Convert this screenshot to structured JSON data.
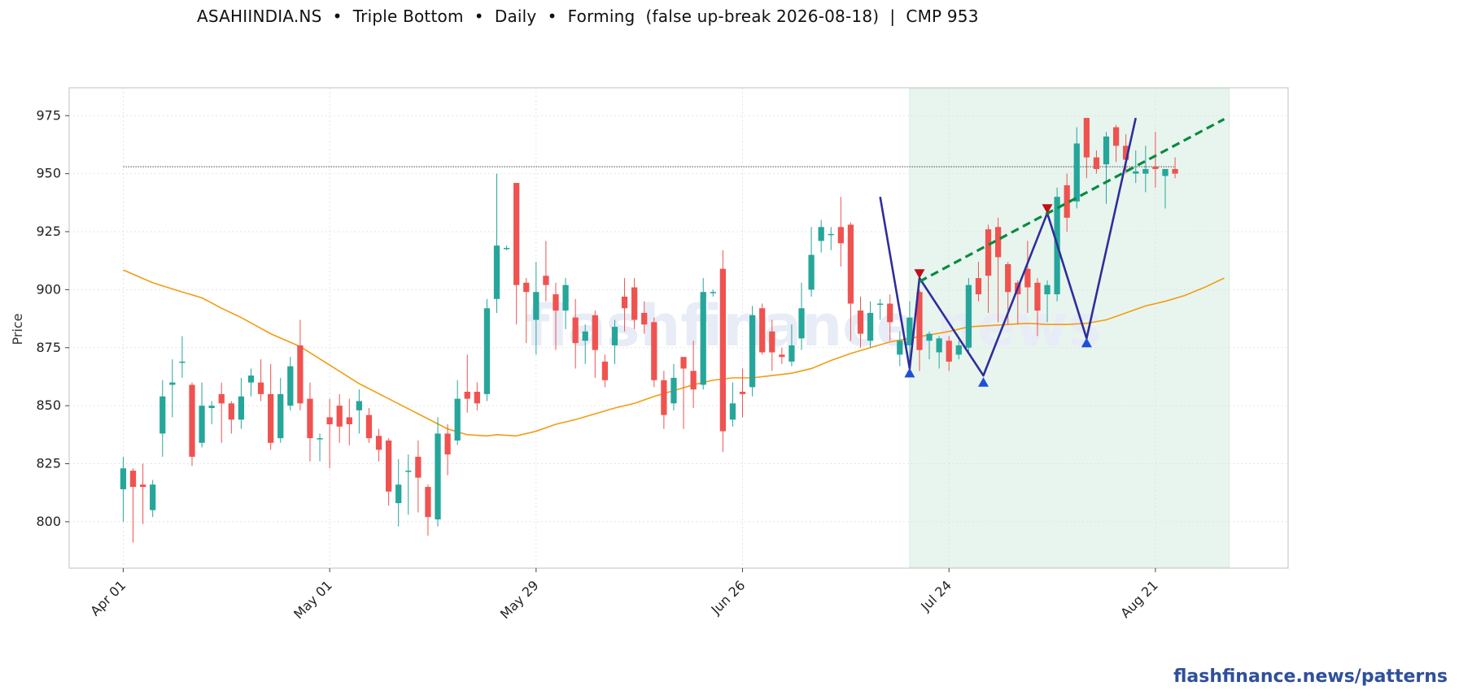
{
  "title": "ASAHIINDIA.NS  •  Triple Bottom  •  Daily  •  Forming  (false up-break 2026-08-18)  |  CMP 953",
  "footer": "flashfinance.news/patterns",
  "watermark": "flashfinance.news",
  "colors": {
    "up": "#26a69a",
    "down": "#ef5350",
    "ma": "#f39c12",
    "pattern": "#2e2e9a",
    "trendline": "#0a8a3f",
    "zone": "#e8f5ee",
    "marker_high": "#c0101a",
    "marker_low": "#1f4fd8"
  },
  "chart_data": {
    "type": "candlestick",
    "ylabel": "Price",
    "ylim": [
      780,
      987
    ],
    "yticks": [
      800,
      825,
      850,
      875,
      900,
      925,
      950,
      975
    ],
    "xlim": [
      -5.5,
      118.5
    ],
    "xticks": [
      {
        "index": 0,
        "label": "Apr 01"
      },
      {
        "index": 21,
        "label": "May 01"
      },
      {
        "index": 42,
        "label": "May 29"
      },
      {
        "index": 63,
        "label": "Jun 26"
      },
      {
        "index": 84,
        "label": "Jul 24"
      },
      {
        "index": 105,
        "label": "Aug 21"
      }
    ],
    "cmp": 953,
    "pattern_zone": [
      80,
      112.5
    ],
    "candles": [
      [
        814,
        823,
        828,
        800
      ],
      [
        822,
        815,
        823,
        791
      ],
      [
        816,
        815,
        825,
        799
      ],
      [
        805,
        816,
        818,
        802
      ],
      [
        838,
        854,
        861,
        828
      ],
      [
        859,
        860,
        870,
        845
      ],
      [
        869,
        869,
        880,
        862
      ],
      [
        859,
        828,
        860,
        824
      ],
      [
        834,
        850,
        860,
        832
      ],
      [
        849,
        850,
        852,
        842
      ],
      [
        855,
        851,
        860,
        834
      ],
      [
        851,
        844,
        852,
        838
      ],
      [
        844,
        854,
        862,
        840
      ],
      [
        860,
        863,
        866,
        854
      ],
      [
        860,
        855,
        870,
        852
      ],
      [
        855,
        834,
        868,
        831
      ],
      [
        836,
        855,
        862,
        834
      ],
      [
        850,
        867,
        871,
        848
      ],
      [
        876,
        851,
        887,
        848
      ],
      [
        853,
        836,
        860,
        826
      ],
      [
        836,
        836,
        838,
        826
      ],
      [
        845,
        842,
        853,
        823
      ],
      [
        850,
        841,
        855,
        834
      ],
      [
        845,
        842,
        853,
        833
      ],
      [
        848,
        852,
        857,
        838
      ],
      [
        846,
        836,
        849,
        834
      ],
      [
        837,
        831,
        840,
        826
      ],
      [
        835,
        813,
        836,
        807
      ],
      [
        808,
        816,
        827,
        798
      ],
      [
        822,
        822,
        829,
        803
      ],
      [
        828,
        819,
        835,
        804
      ],
      [
        815,
        802,
        816,
        794
      ],
      [
        801,
        838,
        845,
        798
      ],
      [
        838,
        829,
        842,
        820
      ],
      [
        835,
        853,
        861,
        833
      ],
      [
        856,
        853,
        872,
        847
      ],
      [
        856,
        851,
        860,
        848
      ],
      [
        855,
        892,
        896,
        852
      ],
      [
        896,
        919,
        950,
        890
      ],
      [
        918,
        918,
        919,
        917
      ],
      [
        946,
        902,
        946,
        885
      ],
      [
        903,
        899,
        905,
        877
      ],
      [
        887,
        899,
        912,
        872
      ],
      [
        906,
        902,
        921,
        895
      ],
      [
        898,
        891,
        903,
        874
      ],
      [
        891,
        902,
        905,
        883
      ],
      [
        888,
        877,
        896,
        866
      ],
      [
        878,
        882,
        885,
        868
      ],
      [
        889,
        874,
        891,
        862
      ],
      [
        869,
        861,
        872,
        858
      ],
      [
        876,
        884,
        887,
        868
      ],
      [
        897,
        892,
        905,
        882
      ],
      [
        901,
        887,
        905,
        883
      ],
      [
        890,
        885,
        895,
        881
      ],
      [
        886,
        861,
        888,
        858
      ],
      [
        861,
        846,
        865,
        840
      ],
      [
        851,
        862,
        868,
        848
      ],
      [
        871,
        866,
        871,
        840
      ],
      [
        865,
        857,
        878,
        849
      ],
      [
        859,
        899,
        905,
        857
      ],
      [
        899,
        899,
        900,
        897
      ],
      [
        909,
        839,
        917,
        830
      ],
      [
        844,
        851,
        860,
        841
      ],
      [
        856,
        855,
        866,
        845
      ],
      [
        858,
        889,
        893,
        854
      ],
      [
        892,
        873,
        894,
        872
      ],
      [
        882,
        873,
        887,
        865
      ],
      [
        872,
        871,
        875,
        868
      ],
      [
        869,
        876,
        885,
        867
      ],
      [
        879,
        892,
        903,
        874
      ],
      [
        900,
        915,
        927,
        897
      ],
      [
        921,
        927,
        930,
        916
      ],
      [
        924,
        924,
        927,
        917
      ],
      [
        927,
        920,
        940,
        910
      ],
      [
        928,
        894,
        929,
        878
      ],
      [
        891,
        881,
        897,
        875
      ],
      [
        878,
        890,
        895,
        875
      ],
      [
        894,
        894,
        896,
        887
      ],
      [
        894,
        886,
        898,
        878
      ],
      [
        872,
        878,
        882,
        867
      ],
      [
        876,
        888,
        895,
        864
      ],
      [
        899,
        874,
        900,
        865
      ],
      [
        878,
        881,
        882,
        870
      ],
      [
        873,
        879,
        880,
        866
      ],
      [
        878,
        869,
        880,
        865
      ],
      [
        872,
        876,
        878,
        870
      ],
      [
        875,
        902,
        905,
        872
      ],
      [
        905,
        898,
        912,
        895
      ],
      [
        926,
        906,
        928,
        890
      ],
      [
        927,
        914,
        931,
        886
      ],
      [
        911,
        899,
        912,
        885
      ],
      [
        903,
        898,
        904,
        885
      ],
      [
        909,
        901,
        921,
        890
      ],
      [
        903,
        891,
        905,
        880
      ],
      [
        898,
        902,
        904,
        886
      ],
      [
        898,
        940,
        944,
        895
      ],
      [
        945,
        931,
        950,
        925
      ],
      [
        938,
        963,
        970,
        935
      ],
      [
        974,
        957,
        974,
        948
      ],
      [
        957,
        952,
        960,
        950
      ],
      [
        954,
        966,
        968,
        937
      ],
      [
        970,
        962,
        971,
        955
      ],
      [
        962,
        956,
        967,
        950
      ],
      [
        950,
        951,
        960,
        946
      ],
      [
        950,
        952,
        962,
        942
      ],
      [
        953,
        952,
        968,
        944
      ],
      [
        949,
        952,
        952,
        935
      ],
      [
        952,
        950,
        957,
        948
      ]
    ],
    "ma_points": [
      [
        0,
        908.5
      ],
      [
        3,
        903
      ],
      [
        6,
        899
      ],
      [
        8,
        896.5
      ],
      [
        10,
        892
      ],
      [
        12,
        888
      ],
      [
        15,
        881
      ],
      [
        18,
        875.5
      ],
      [
        21,
        867.5
      ],
      [
        24,
        859.5
      ],
      [
        27,
        853
      ],
      [
        30,
        846.5
      ],
      [
        33,
        840
      ],
      [
        35,
        837.5
      ],
      [
        37,
        837
      ],
      [
        38,
        837.5
      ],
      [
        40,
        837
      ],
      [
        42,
        839
      ],
      [
        44,
        842
      ],
      [
        46,
        844
      ],
      [
        48,
        846.5
      ],
      [
        50,
        849
      ],
      [
        52,
        851
      ],
      [
        54,
        854
      ],
      [
        56,
        856.5
      ],
      [
        58,
        859
      ],
      [
        60,
        861
      ],
      [
        62,
        862
      ],
      [
        64,
        862
      ],
      [
        66,
        863
      ],
      [
        68,
        864
      ],
      [
        70,
        866
      ],
      [
        72,
        869.5
      ],
      [
        74,
        872.5
      ],
      [
        76,
        875
      ],
      [
        78,
        877.5
      ],
      [
        80,
        879
      ],
      [
        82,
        880.5
      ],
      [
        84,
        882
      ],
      [
        86,
        884
      ],
      [
        88,
        884.5
      ],
      [
        90,
        885
      ],
      [
        92,
        885.5
      ],
      [
        94,
        885
      ],
      [
        96,
        885
      ],
      [
        98,
        885.5
      ],
      [
        100,
        887
      ],
      [
        102,
        890
      ],
      [
        104,
        893
      ],
      [
        106,
        895
      ],
      [
        108,
        897.5
      ],
      [
        110,
        901
      ],
      [
        112,
        905
      ]
    ],
    "pattern_line": [
      [
        77,
        940
      ],
      [
        80,
        866
      ],
      [
        81,
        905
      ],
      [
        87.5,
        863
      ],
      [
        94,
        933
      ],
      [
        98,
        879
      ],
      [
        103,
        974
      ]
    ],
    "trendline": [
      [
        81,
        903.5
      ],
      [
        112,
        973.5
      ]
    ],
    "markers": [
      {
        "type": "low",
        "x": 80,
        "y": 864
      },
      {
        "type": "high",
        "x": 81,
        "y": 907
      },
      {
        "type": "low",
        "x": 87.5,
        "y": 860
      },
      {
        "type": "high",
        "x": 94,
        "y": 935
      },
      {
        "type": "low",
        "x": 98,
        "y": 877
      }
    ]
  }
}
